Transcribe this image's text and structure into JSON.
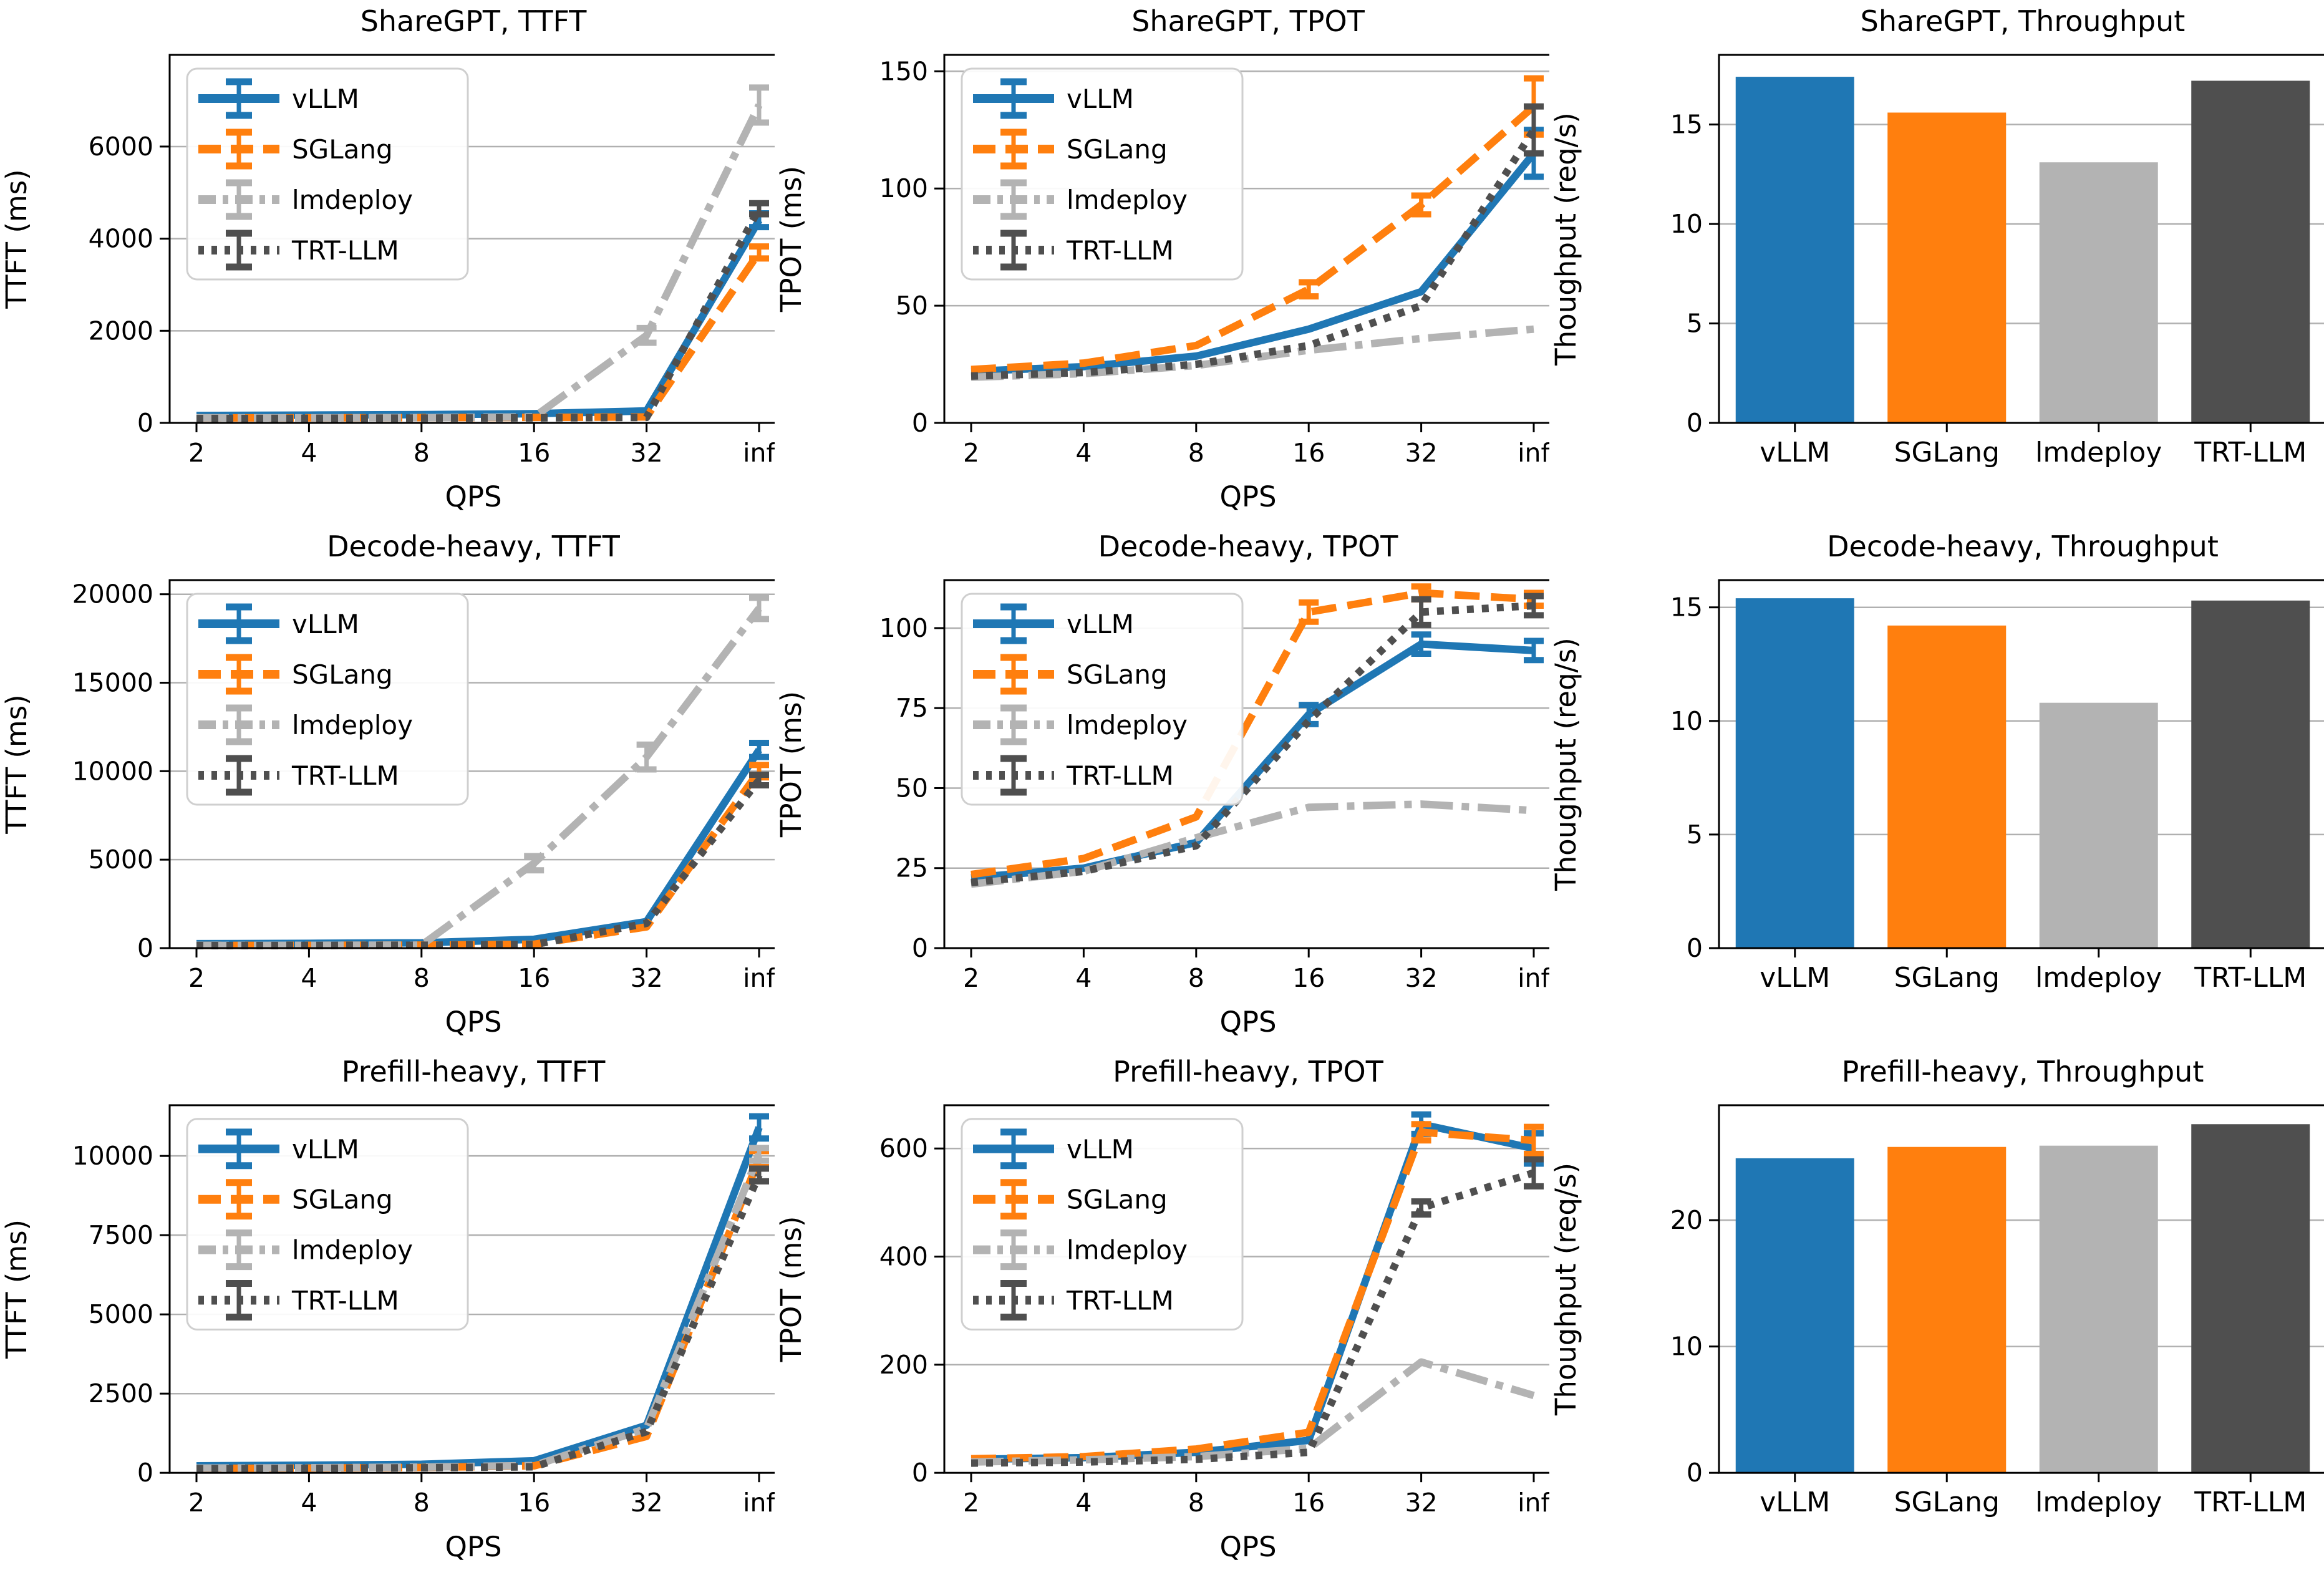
{
  "figure": {
    "background": "#ffffff",
    "rows": [
      "ShareGPT",
      "Decode-heavy",
      "Prefill-heavy"
    ],
    "metrics": [
      "TTFT",
      "TPOT",
      "Throughput"
    ]
  },
  "style": {
    "grid_color": "#b0b0b0",
    "spine_color": "#000000",
    "text_color": "#000000",
    "legend_border": "#cfcfcf",
    "series": [
      {
        "name": "vLLM",
        "color": "#1f77b4",
        "dash": "solid"
      },
      {
        "name": "SGLang",
        "color": "#ff7f0e",
        "dash": "dashed"
      },
      {
        "name": "lmdeploy",
        "color": "#b3b3b3",
        "dash": "dashdot"
      },
      {
        "name": "TRT-LLM",
        "color": "#4f4f4f",
        "dash": "dotted"
      }
    ]
  },
  "chart_data": [
    {
      "type": "line",
      "title": "ShareGPT, TTFT",
      "xlabel": "QPS",
      "ylabel": "TTFT (ms)",
      "x_ticklabels": [
        "2",
        "4",
        "8",
        "16",
        "32",
        "inf"
      ],
      "yticks": [
        0,
        2000,
        4000,
        6000
      ],
      "ylim": [
        0,
        7990
      ],
      "grid": true,
      "legend": "upper left",
      "series": [
        {
          "name": "vLLM",
          "values": [
            160,
            170,
            180,
            200,
            260,
            4400
          ],
          "err": [
            0,
            0,
            0,
            0,
            0,
            150
          ]
        },
        {
          "name": "SGLang",
          "values": [
            110,
            110,
            115,
            120,
            130,
            3700
          ],
          "err": [
            0,
            0,
            0,
            0,
            0,
            130
          ]
        },
        {
          "name": "lmdeploy",
          "values": [
            110,
            110,
            115,
            130,
            1900,
            6900
          ],
          "err": [
            0,
            0,
            0,
            0,
            160,
            380
          ]
        },
        {
          "name": "TRT-LLM",
          "values": [
            95,
            100,
            105,
            110,
            120,
            4650
          ],
          "err": [
            0,
            0,
            0,
            0,
            0,
            120
          ]
        }
      ]
    },
    {
      "type": "line",
      "title": "ShareGPT, TPOT",
      "xlabel": "QPS",
      "ylabel": "TPOT (ms)",
      "x_ticklabels": [
        "2",
        "4",
        "8",
        "16",
        "32",
        "inf"
      ],
      "yticks": [
        0,
        50,
        100,
        150
      ],
      "ylim": [
        0,
        157
      ],
      "grid": true,
      "legend": "upper left",
      "series": [
        {
          "name": "vLLM",
          "values": [
            22,
            24,
            28.5,
            40,
            56,
            115
          ],
          "err": [
            0,
            0,
            0,
            0,
            0,
            10
          ]
        },
        {
          "name": "SGLang",
          "values": [
            22.8,
            25.5,
            33,
            57,
            93,
            135
          ],
          "err": [
            0,
            0,
            0,
            3,
            4,
            12
          ]
        },
        {
          "name": "lmdeploy",
          "values": [
            19.5,
            21,
            24.5,
            31,
            36,
            40
          ],
          "err": [
            0,
            0,
            0,
            0,
            0,
            0
          ]
        },
        {
          "name": "TRT-LLM",
          "values": [
            20,
            21.5,
            25,
            33,
            50,
            125
          ],
          "err": [
            0,
            0,
            0,
            0,
            0,
            10
          ]
        }
      ]
    },
    {
      "type": "bar",
      "title": "ShareGPT, Throughput",
      "xlabel": "",
      "ylabel": "Thoughput (req/s)",
      "categories": [
        "vLLM",
        "SGLang",
        "lmdeploy",
        "TRT-LLM"
      ],
      "values": [
        17.4,
        15.6,
        13.1,
        17.2
      ],
      "yticks": [
        0,
        5,
        10,
        15
      ],
      "ylim": [
        0,
        18.5
      ],
      "grid": true
    },
    {
      "type": "line",
      "title": "Decode-heavy, TTFT",
      "xlabel": "QPS",
      "ylabel": "TTFT (ms)",
      "x_ticklabels": [
        "2",
        "4",
        "8",
        "16",
        "32",
        "inf"
      ],
      "yticks": [
        0,
        5000,
        10000,
        15000,
        20000
      ],
      "ylim": [
        0,
        20800
      ],
      "grid": true,
      "legend": "upper left",
      "series": [
        {
          "name": "vLLM",
          "values": [
            250,
            270,
            300,
            500,
            1500,
            11200
          ],
          "err": [
            0,
            0,
            0,
            0,
            0,
            400
          ]
        },
        {
          "name": "SGLang",
          "values": [
            150,
            160,
            170,
            220,
            1200,
            10000
          ],
          "err": [
            0,
            0,
            0,
            0,
            0,
            350
          ]
        },
        {
          "name": "lmdeploy",
          "values": [
            150,
            160,
            170,
            4800,
            10800,
            19200
          ],
          "err": [
            0,
            0,
            0,
            400,
            700,
            600
          ]
        },
        {
          "name": "TRT-LLM",
          "values": [
            140,
            150,
            160,
            200,
            1400,
            9500
          ],
          "err": [
            0,
            0,
            0,
            0,
            0,
            300
          ]
        }
      ]
    },
    {
      "type": "line",
      "title": "Decode-heavy, TPOT",
      "xlabel": "QPS",
      "ylabel": "TPOT (ms)",
      "x_ticklabels": [
        "2",
        "4",
        "8",
        "16",
        "32",
        "inf"
      ],
      "yticks": [
        0,
        25,
        50,
        75,
        100
      ],
      "ylim": [
        0,
        115
      ],
      "grid": true,
      "legend": "upper left",
      "series": [
        {
          "name": "vLLM",
          "values": [
            22,
            25,
            33,
            73,
            95,
            93
          ],
          "err": [
            0,
            0,
            0,
            3,
            3,
            3
          ]
        },
        {
          "name": "SGLang",
          "values": [
            23,
            28,
            41,
            105,
            111,
            109
          ],
          "err": [
            0,
            0,
            0,
            3,
            2,
            2
          ]
        },
        {
          "name": "lmdeploy",
          "values": [
            20,
            24,
            34.5,
            44,
            45,
            43
          ],
          "err": [
            0,
            0,
            0,
            0,
            0,
            0
          ]
        },
        {
          "name": "TRT-LLM",
          "values": [
            20.5,
            24,
            32,
            71,
            105,
            107
          ],
          "err": [
            0,
            0,
            0,
            0,
            4,
            3
          ]
        }
      ]
    },
    {
      "type": "bar",
      "title": "Decode-heavy, Throughput",
      "xlabel": "",
      "ylabel": "Thoughput (req/s)",
      "categories": [
        "vLLM",
        "SGLang",
        "lmdeploy",
        "TRT-LLM"
      ],
      "values": [
        15.4,
        14.2,
        10.8,
        15.3
      ],
      "yticks": [
        0,
        5,
        10,
        15
      ],
      "ylim": [
        0,
        16.2
      ],
      "grid": true
    },
    {
      "type": "line",
      "title": "Prefill-heavy, TTFT",
      "xlabel": "QPS",
      "ylabel": "TTFT (ms)",
      "x_ticklabels": [
        "2",
        "4",
        "8",
        "16",
        "32",
        "inf"
      ],
      "yticks": [
        0,
        2500,
        5000,
        7500,
        10000
      ],
      "ylim": [
        0,
        11600
      ],
      "grid": true,
      "legend": "upper left",
      "series": [
        {
          "name": "vLLM",
          "values": [
            220,
            240,
            270,
            380,
            1500,
            10900
          ],
          "err": [
            0,
            0,
            0,
            0,
            0,
            350
          ]
        },
        {
          "name": "SGLang",
          "values": [
            140,
            150,
            170,
            220,
            1150,
            9900
          ],
          "err": [
            0,
            0,
            0,
            0,
            0,
            250
          ]
        },
        {
          "name": "lmdeploy",
          "values": [
            150,
            160,
            180,
            230,
            1400,
            10050
          ],
          "err": [
            0,
            0,
            0,
            0,
            0,
            200
          ]
        },
        {
          "name": "TRT-LLM",
          "values": [
            130,
            140,
            160,
            190,
            1300,
            9400
          ],
          "err": [
            0,
            0,
            0,
            0,
            0,
            200
          ]
        }
      ]
    },
    {
      "type": "line",
      "title": "Prefill-heavy, TPOT",
      "xlabel": "QPS",
      "ylabel": "TPOT (ms)",
      "x_ticklabels": [
        "2",
        "4",
        "8",
        "16",
        "32",
        "inf"
      ],
      "yticks": [
        0,
        200,
        400,
        600
      ],
      "ylim": [
        0,
        680
      ],
      "grid": true,
      "legend": "upper left",
      "series": [
        {
          "name": "vLLM",
          "values": [
            25,
            28,
            38,
            60,
            645,
            600
          ],
          "err": [
            0,
            0,
            0,
            0,
            18,
            28
          ]
        },
        {
          "name": "SGLang",
          "values": [
            26,
            30,
            44,
            75,
            630,
            615
          ],
          "err": [
            0,
            0,
            0,
            0,
            15,
            25
          ]
        },
        {
          "name": "lmdeploy",
          "values": [
            20,
            24,
            30,
            45,
            205,
            143
          ],
          "err": [
            0,
            0,
            0,
            0,
            0,
            0
          ]
        },
        {
          "name": "TRT-LLM",
          "values": [
            18,
            20,
            25,
            38,
            490,
            555
          ],
          "err": [
            0,
            0,
            0,
            0,
            12,
            25
          ]
        }
      ]
    },
    {
      "type": "bar",
      "title": "Prefill-heavy, Throughput",
      "xlabel": "",
      "ylabel": "Thoughput (req/s)",
      "categories": [
        "vLLM",
        "SGLang",
        "lmdeploy",
        "TRT-LLM"
      ],
      "values": [
        24.9,
        25.8,
        25.9,
        27.6
      ],
      "yticks": [
        0,
        10,
        20
      ],
      "ylim": [
        0,
        29.1
      ],
      "grid": true
    }
  ]
}
